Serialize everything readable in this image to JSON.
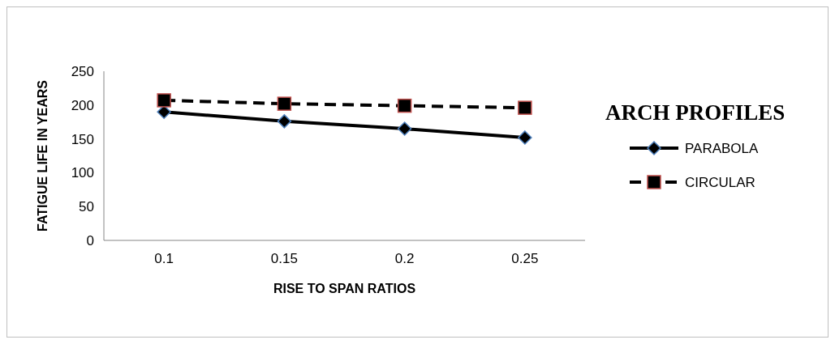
{
  "chart_data": {
    "type": "line",
    "xlabel": "RISE TO SPAN RATIOS",
    "ylabel": "FATIGUE LIFE IN YEARS",
    "legend_title": "ARCH PROFILES",
    "categories": [
      "0.1",
      "0.15",
      "0.2",
      "0.25"
    ],
    "series": [
      {
        "name": "PARABOLA",
        "color": "#000000",
        "values": [
          190,
          176,
          165,
          152
        ],
        "marker": "diamond",
        "line_style": "solid"
      },
      {
        "name": "CIRCULAR",
        "color": "#000000",
        "values": [
          207,
          202,
          199,
          196
        ],
        "marker": "square",
        "line_style": "dashed"
      }
    ],
    "ylim": [
      0,
      250
    ],
    "yticks": [
      0,
      50,
      100,
      150,
      200,
      250
    ],
    "legend": "right"
  }
}
